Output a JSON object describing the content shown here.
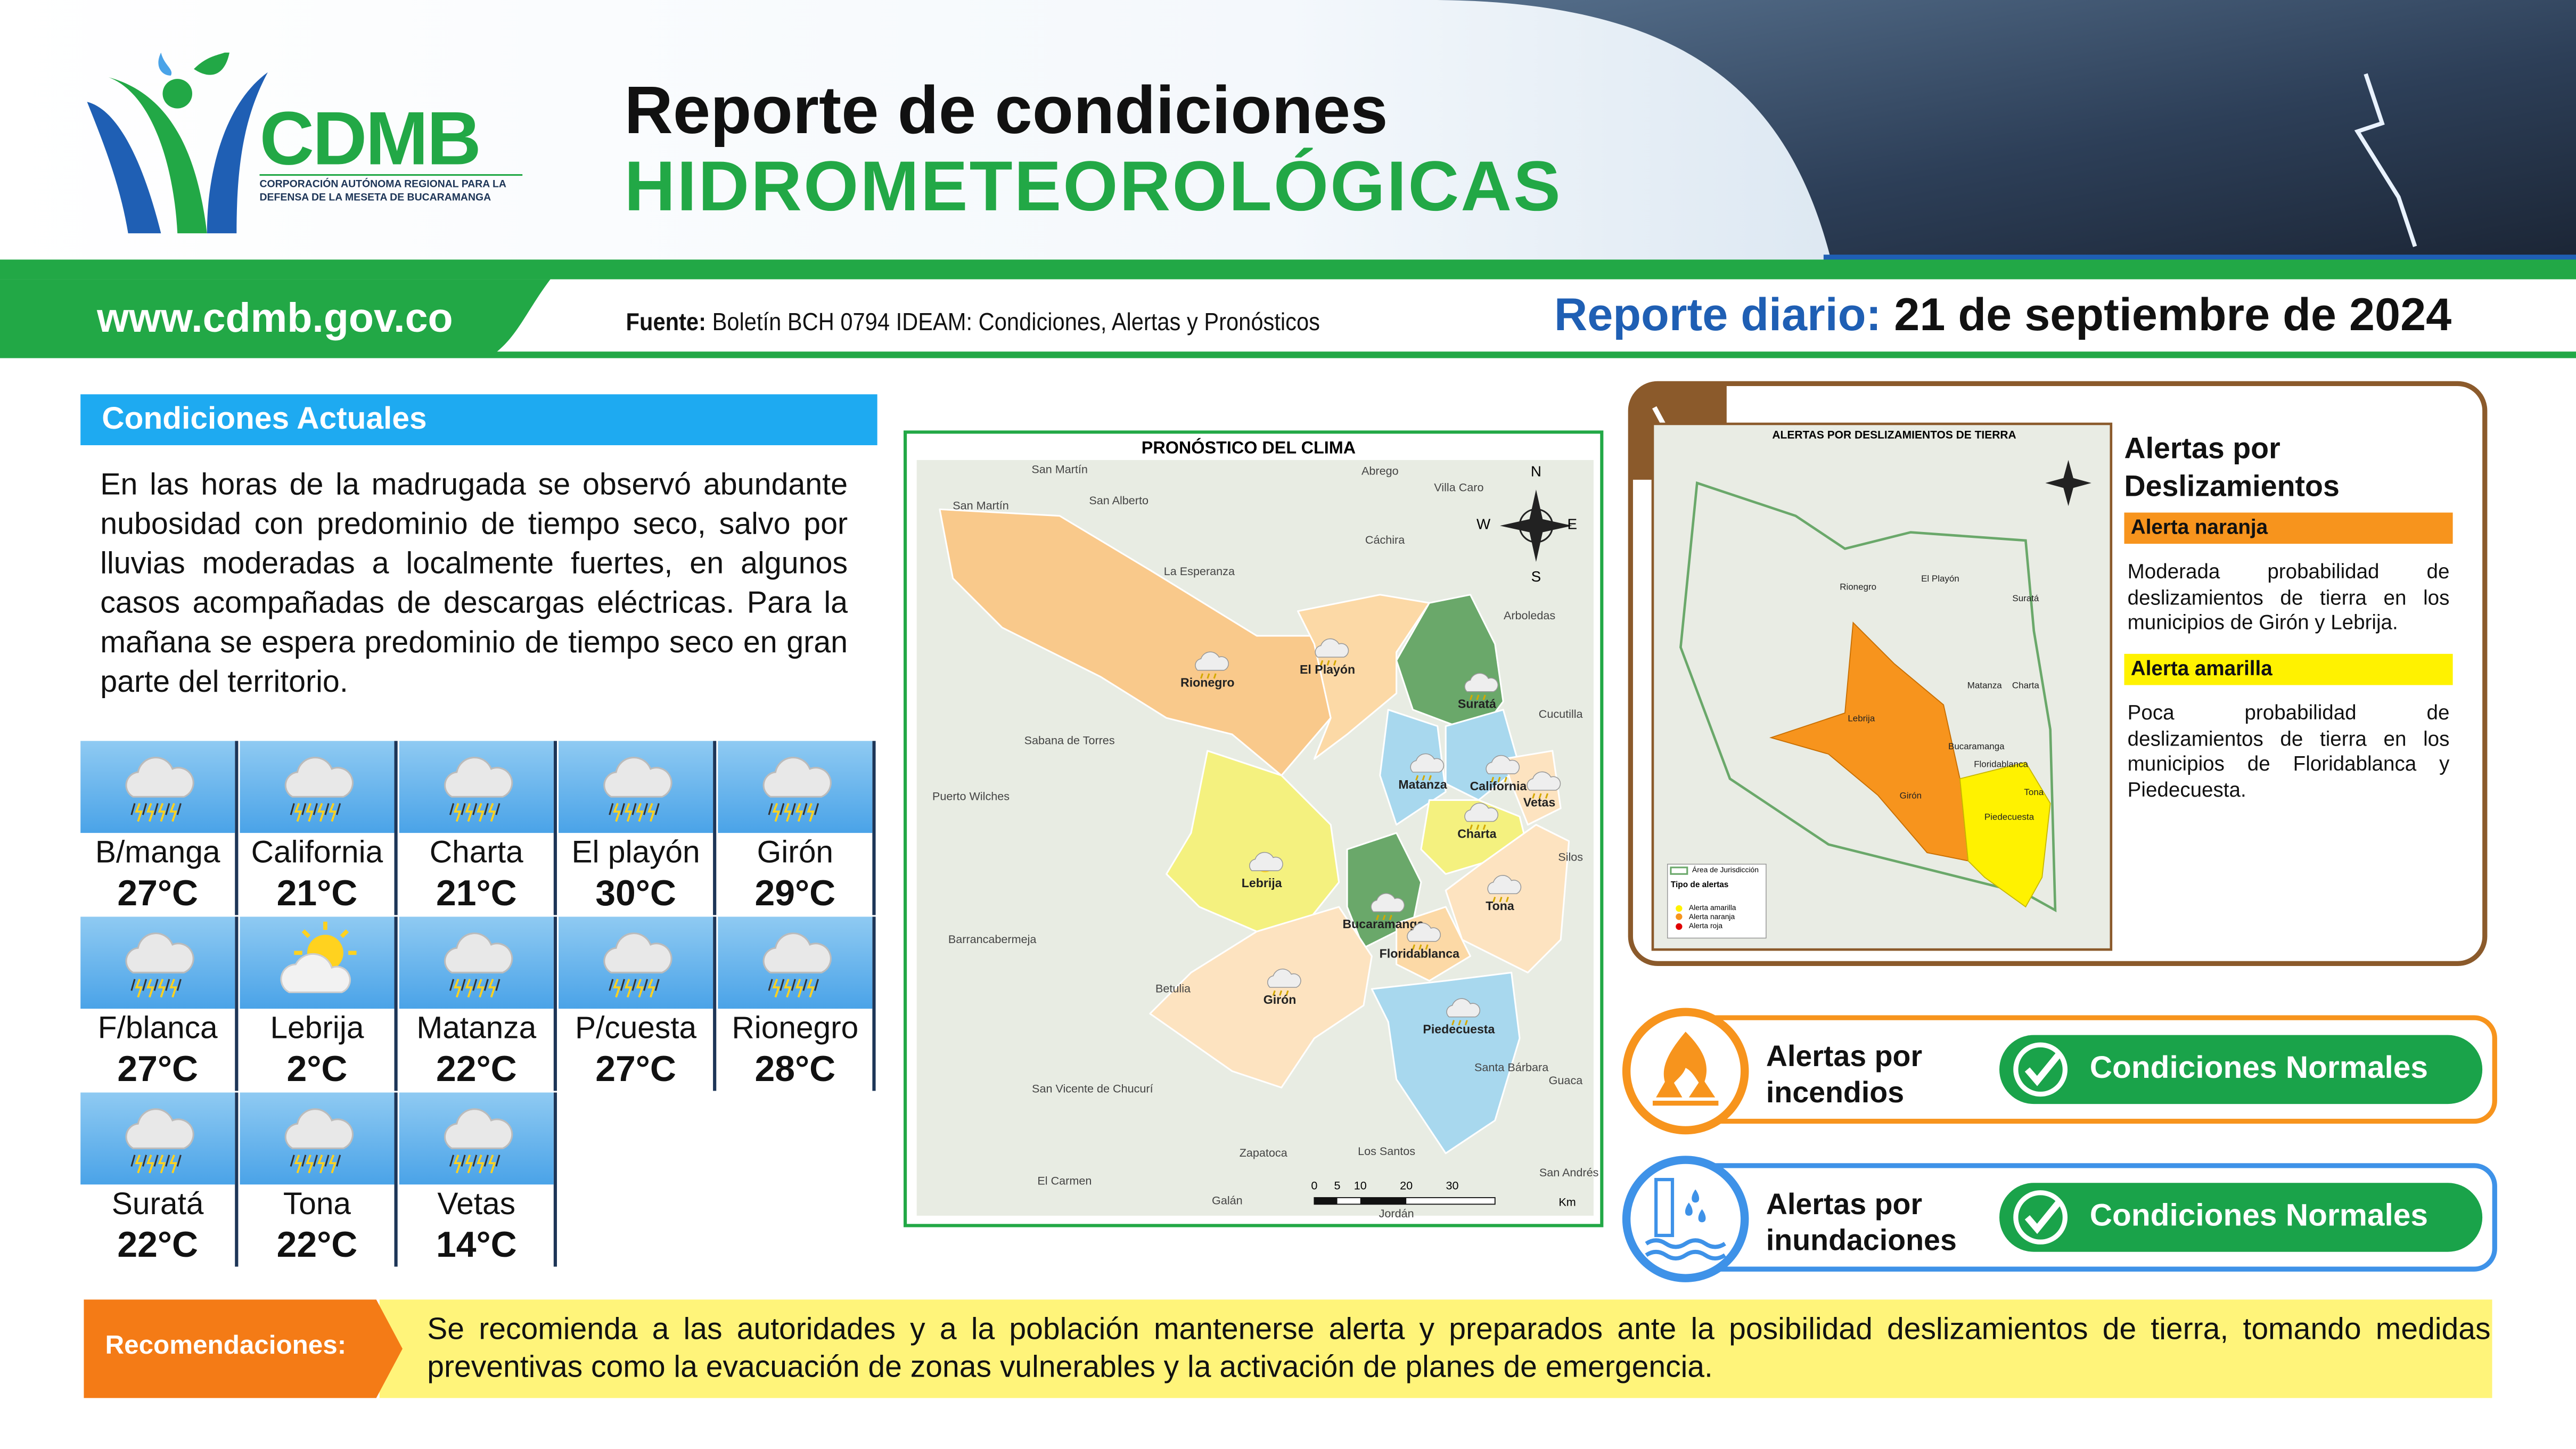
{
  "header": {
    "logo_name": "CDMB",
    "logo_subtitle": [
      "CORPORACIÓN AUTÓNOMA REGIONAL PARA LA",
      "DEFENSA DE LA MESETA DE BUCARAMANGA"
    ],
    "title_line1": "Reporte de condiciones",
    "title_line2": "HIDROMETEOROLÓGICAS",
    "website": "www.cdmb.gov.co",
    "source_label": "Fuente:",
    "source_text": "Boletín BCH 0794 IDEAM: Condiciones, Alertas y Pronósticos",
    "report_label": "Reporte diario:",
    "report_date": "21 de septiembre de 2024"
  },
  "conditions": {
    "heading": "Condiciones Actuales",
    "text": "En las horas de la madrugada se observó abundante nubosidad con predominio de tiempo seco, salvo por lluvias moderadas a localmente fuertes, en algunos casos acompañadas de descargas eléctricas. Para la mañana se espera predominio de tiempo seco en gran parte del territorio.",
    "cities": [
      {
        "name": "B/manga",
        "temp": "27°C",
        "icon": "storm"
      },
      {
        "name": "California",
        "temp": "21°C",
        "icon": "storm"
      },
      {
        "name": "Charta",
        "temp": "21°C",
        "icon": "storm"
      },
      {
        "name": "El playón",
        "temp": "30°C",
        "icon": "storm"
      },
      {
        "name": "Girón",
        "temp": "29°C",
        "icon": "storm"
      },
      {
        "name": "F/blanca",
        "temp": "27°C",
        "icon": "storm"
      },
      {
        "name": "Lebrija",
        "temp": "2°C",
        "icon": "partly-sunny"
      },
      {
        "name": "Matanza",
        "temp": "22°C",
        "icon": "storm"
      },
      {
        "name": "P/cuesta",
        "temp": "27°C",
        "icon": "storm"
      },
      {
        "name": "Rionegro",
        "temp": "28°C",
        "icon": "storm"
      },
      {
        "name": "Suratá",
        "temp": "22°C",
        "icon": "storm"
      },
      {
        "name": "Tona",
        "temp": "22°C",
        "icon": "storm"
      },
      {
        "name": "Vetas",
        "temp": "14°C",
        "icon": "storm"
      }
    ]
  },
  "forecast_map": {
    "title": "PRONÓSTICO DEL CLIMA",
    "municipalities": [
      "Rionegro",
      "El Playón",
      "Suratá",
      "Matanza",
      "California",
      "Vetas",
      "Charta",
      "Tona",
      "Lebrija",
      "Bucaramanga",
      "Floridablanca",
      "Girón",
      "Piedecuesta"
    ],
    "places": [
      "San Martín",
      "San Martín",
      "San Alberto",
      "Abrego",
      "Villa Caro",
      "Cáchira",
      "La Esperanza",
      "Arboledas",
      "Cucutilla",
      "Sabana de Torres",
      "Puerto Wilches",
      "Silos",
      "Barrancabermeja",
      "Betulia",
      "Santa Bárbara",
      "Guaca",
      "San Vicente de Chucurí",
      "Zapatoca",
      "Los Santos",
      "El Carmen",
      "Galán",
      "Jordán",
      "San Andrés"
    ],
    "compass": [
      "N",
      "E",
      "S",
      "W"
    ],
    "scale_labels": [
      "0",
      "5",
      "10",
      "20",
      "30"
    ],
    "scale_unit": "Km"
  },
  "landslide": {
    "map_title": "ALERTAS POR DESLIZAMIENTOS DE TIERRA",
    "title": [
      "Alertas por",
      "Deslizamientos"
    ],
    "map_labels": [
      "Rionegro",
      "El Playón",
      "Suratá",
      "Matanza",
      "Charta",
      "Lebrija",
      "Bucaramanga",
      "Floridablanca",
      "Girón",
      "Piedecuesta",
      "Tona"
    ],
    "legend_title": "Tipo de alertas",
    "legend": [
      "Área de Jurisdicción",
      "Alerta amarilla",
      "Alerta naranja",
      "Alerta roja"
    ],
    "alerts": [
      {
        "label": "Alerta naranja",
        "color": "#f7941d",
        "text": "Moderada probabilidad de deslizamientos de tierra en los municipios de Girón y Lebrija."
      },
      {
        "label": "Alerta amarilla",
        "color": "#fff200",
        "text": "Poca probabilidad de deslizamientos de tierra en los municipios de Floridablanca y Piedecuesta."
      }
    ]
  },
  "fire": {
    "title": [
      "Alertas por",
      "incendios"
    ],
    "status": "Condiciones Normales"
  },
  "flood": {
    "title": [
      "Alertas por",
      "inundaciones"
    ],
    "status": "Condiciones Normales"
  },
  "recommendations": {
    "label": "Recomendaciones:",
    "text": "Se recomienda a las autoridades y a la población mantenerse alerta y preparados ante la posibilidad deslizamientos de tierra, tomando medidas preventivas como la evacuación de zonas vulnerables y la activación de planes de emergencia."
  }
}
